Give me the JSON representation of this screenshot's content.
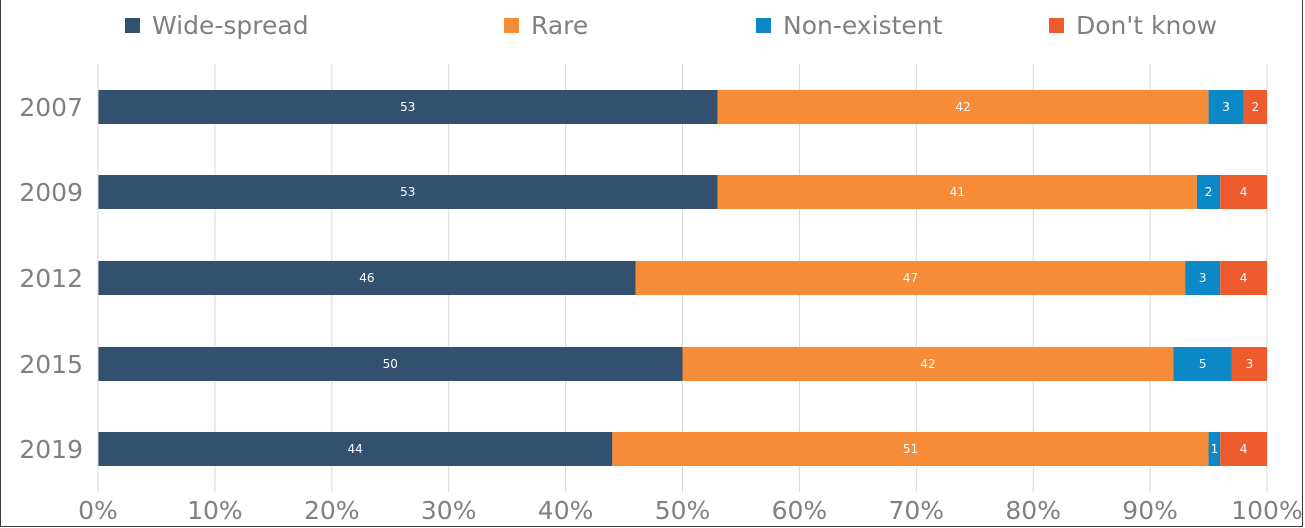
{
  "chart_data": {
    "type": "bar",
    "orientation": "horizontal",
    "stacked": true,
    "categories": [
      "2007",
      "2009",
      "2012",
      "2015",
      "2019"
    ],
    "series": [
      {
        "name": "Wide-spread",
        "color": "#34506F",
        "values": [
          53,
          53,
          46,
          50,
          44
        ]
      },
      {
        "name": "Rare",
        "color": "#F68C38",
        "values": [
          42,
          41,
          47,
          42,
          51
        ]
      },
      {
        "name": "Non-existent",
        "color": "#0D88C6",
        "values": [
          3,
          2,
          3,
          5,
          1
        ]
      },
      {
        "name": "Don't know",
        "color": "#EE5B2C",
        "values": [
          2,
          4,
          4,
          3,
          4
        ]
      }
    ],
    "xlim": [
      0,
      100
    ],
    "x_ticks": [
      "0%",
      "10%",
      "20%",
      "30%",
      "40%",
      "50%",
      "60%",
      "70%",
      "80%",
      "90%",
      "100%"
    ],
    "grid": "vertical",
    "legend_position": "top"
  }
}
